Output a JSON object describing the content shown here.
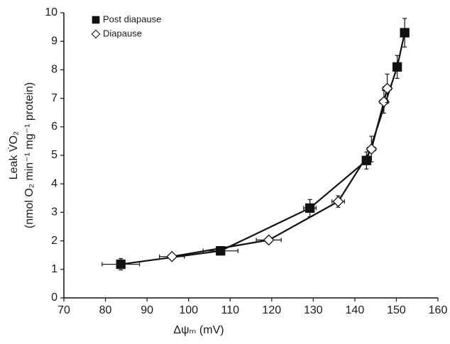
{
  "chart_data": {
    "type": "line",
    "xlabel": "Δψₘ (mV)",
    "ylabel": [
      "Leak V̇O₂",
      "(nmol O₂ min⁻¹ mg⁻¹ protein)"
    ],
    "xlim": [
      70,
      160
    ],
    "xticks": [
      70,
      80,
      90,
      100,
      110,
      120,
      130,
      140,
      150,
      160
    ],
    "ylim": [
      0,
      10
    ],
    "yticks": [
      0,
      1,
      2,
      3,
      4,
      5,
      6,
      7,
      8,
      9,
      10
    ],
    "legend": "upper left",
    "series": [
      {
        "name": "Post diapause",
        "color": "#111111",
        "marker": "square",
        "filled": true,
        "x": [
          83.7,
          107.7,
          129.2,
          142.8,
          150.2,
          152.0
        ],
        "values": [
          1.18,
          1.65,
          3.15,
          4.82,
          8.1,
          9.3
        ],
        "x_error": [
          4.5,
          4.2,
          1.5,
          1.0,
          1.0,
          1.0
        ],
        "y_error": [
          0.2,
          0.05,
          0.3,
          0.3,
          0.4,
          0.5
        ]
      },
      {
        "name": "Diapause",
        "color": "#111111",
        "marker": "diamond",
        "filled": false,
        "x": [
          96.0,
          119.3,
          136.0,
          144.0,
          147.0,
          147.8
        ],
        "values": [
          1.45,
          2.03,
          3.38,
          5.22,
          6.88,
          7.35
        ],
        "x_error": [
          3.0,
          3.0,
          1.5,
          1.0,
          1.0,
          1.0
        ],
        "y_error": [
          0.1,
          0.1,
          0.2,
          0.45,
          0.4,
          0.5
        ]
      }
    ]
  }
}
